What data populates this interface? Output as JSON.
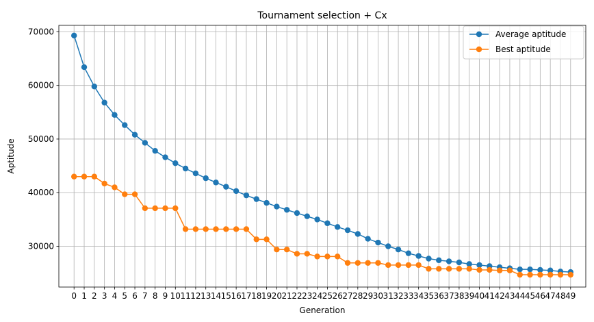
{
  "chart_data": {
    "type": "line",
    "title": "Tournament selection + Cx",
    "xlabel": "Generation",
    "ylabel": "Aptitude",
    "xlim": [
      -1.5,
      50.5
    ],
    "ylim": [
      22400,
      71200
    ],
    "yticks": [
      30000,
      40000,
      50000,
      60000,
      70000
    ],
    "x": [
      0,
      1,
      2,
      3,
      4,
      5,
      6,
      7,
      8,
      9,
      10,
      11,
      12,
      13,
      14,
      15,
      16,
      17,
      18,
      19,
      20,
      21,
      22,
      23,
      24,
      25,
      26,
      27,
      28,
      29,
      30,
      31,
      32,
      33,
      34,
      35,
      36,
      37,
      38,
      39,
      40,
      41,
      42,
      43,
      44,
      45,
      46,
      47,
      48,
      49
    ],
    "grid": true,
    "legend_position": "top-right",
    "series": [
      {
        "name": "Average aptitude",
        "color": "#1f77b4",
        "values": [
          69300,
          63400,
          59800,
          56800,
          54500,
          52600,
          50800,
          49300,
          47800,
          46600,
          45500,
          44500,
          43600,
          42700,
          41900,
          41100,
          40300,
          39500,
          38800,
          38100,
          37400,
          36800,
          36200,
          35600,
          35000,
          34300,
          33600,
          33000,
          32300,
          31400,
          30700,
          30000,
          29400,
          28700,
          28200,
          27700,
          27400,
          27200,
          27000,
          26700,
          26500,
          26300,
          26100,
          25900,
          25700,
          25700,
          25600,
          25500,
          25300,
          25200
        ]
      },
      {
        "name": "Best aptitude",
        "color": "#ff7f0e",
        "values": [
          43000,
          43000,
          43000,
          41700,
          41000,
          39700,
          39700,
          37100,
          37100,
          37100,
          37100,
          33200,
          33200,
          33200,
          33200,
          33200,
          33200,
          33200,
          31300,
          31300,
          29400,
          29400,
          28600,
          28600,
          28100,
          28100,
          28100,
          26900,
          26900,
          26900,
          26900,
          26500,
          26500,
          26500,
          26500,
          25800,
          25800,
          25800,
          25800,
          25800,
          25600,
          25600,
          25500,
          25500,
          24700,
          24700,
          24700,
          24700,
          24700,
          24700
        ]
      }
    ]
  }
}
